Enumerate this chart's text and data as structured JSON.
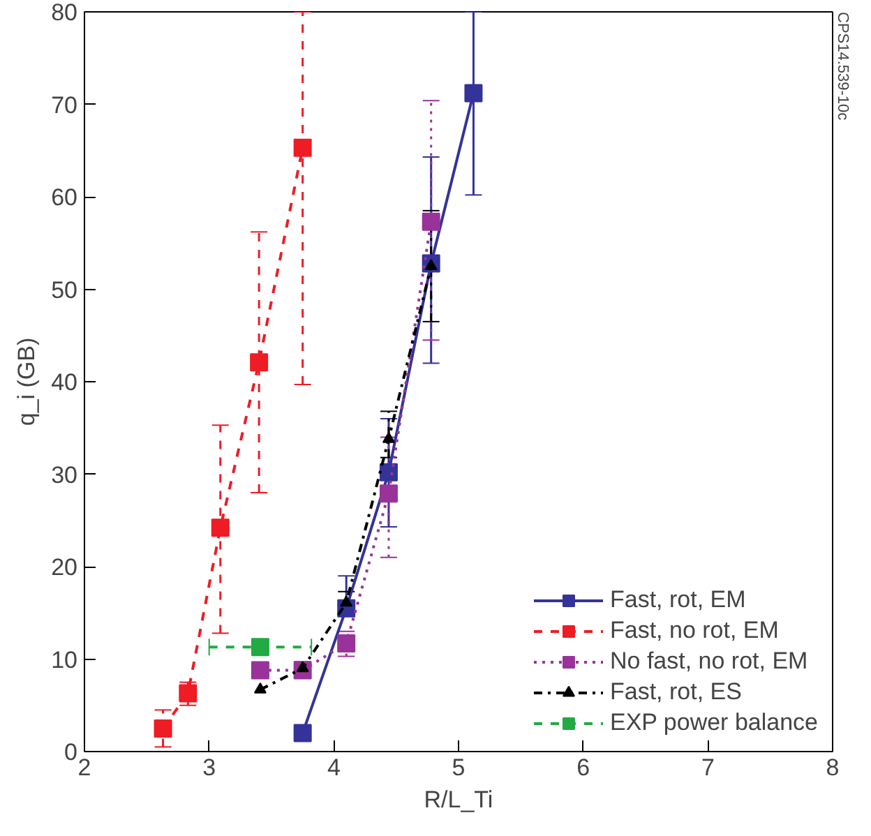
{
  "chart_data": {
    "type": "line",
    "xlabel": "R/L_Ti",
    "ylabel": "q_i (GB)",
    "xlim": [
      2,
      8
    ],
    "ylim": [
      0,
      80
    ],
    "xticks": [
      2,
      3,
      4,
      5,
      6,
      7,
      8
    ],
    "yticks": [
      0,
      10,
      20,
      30,
      40,
      50,
      60,
      70,
      80
    ],
    "grid": false,
    "legend": "bottom right",
    "annotations": [
      "CPS14.539-10c"
    ],
    "series": [
      {
        "name": "Fast, rot, EM",
        "color": "#333399",
        "line_style": "solid",
        "marker": "square",
        "x": [
          3.75,
          4.1,
          4.44,
          4.78,
          5.12
        ],
        "values": [
          2,
          15.5,
          30.2,
          52.8,
          71.2
        ],
        "errors": [
          null,
          [
            14.7,
            19
          ],
          [
            24.3,
            36
          ],
          [
            42,
            64.3
          ],
          [
            60.2,
            80
          ]
        ]
      },
      {
        "name": "Fast, no rot, EM",
        "color": "#ee1c25",
        "line_style": "dashed",
        "marker": "square",
        "x": [
          2.63,
          2.83,
          3.09,
          3.4,
          3.75
        ],
        "values": [
          2.5,
          6.3,
          24.2,
          42.1,
          65.3
        ],
        "errors": [
          [
            0.5,
            4.5
          ],
          [
            5,
            7.5
          ],
          [
            12.8,
            35.3
          ],
          [
            28,
            56.2
          ],
          [
            39.7,
            80
          ]
        ]
      },
      {
        "name": "No fast, no rot, EM",
        "color": "#993399",
        "line_style": "dotted",
        "marker": "square",
        "x": [
          3.41,
          3.75,
          4.1,
          4.44,
          4.78
        ],
        "values": [
          8.8,
          8.8,
          11.7,
          27.9,
          57.3
        ],
        "errors": [
          [
            8,
            9.6
          ],
          null,
          [
            10.3,
            13
          ],
          [
            21,
            34
          ],
          [
            44.5,
            70.4
          ]
        ]
      },
      {
        "name": "Fast, rot, ES",
        "color": "#000000",
        "line_style": "dashdot",
        "marker": "triangle",
        "x": [
          3.41,
          3.75,
          4.1,
          4.44,
          4.78
        ],
        "values": [
          6.7,
          9.0,
          16.1,
          33.8,
          52.5
        ],
        "errors": [
          null,
          [
            8.3,
            9.7
          ],
          [
            15,
            17.3
          ],
          [
            31.8,
            36.8
          ],
          [
            46.5,
            58.5
          ]
        ]
      },
      {
        "name": "EXP power balance",
        "color": "#22aa44",
        "line_style": "dashed",
        "marker": "square",
        "x": [
          3.41
        ],
        "values": [
          11.3
        ],
        "xerrors": [
          [
            3.0,
            3.82
          ]
        ],
        "errors": [
          [
            10.6,
            12
          ]
        ]
      }
    ]
  }
}
